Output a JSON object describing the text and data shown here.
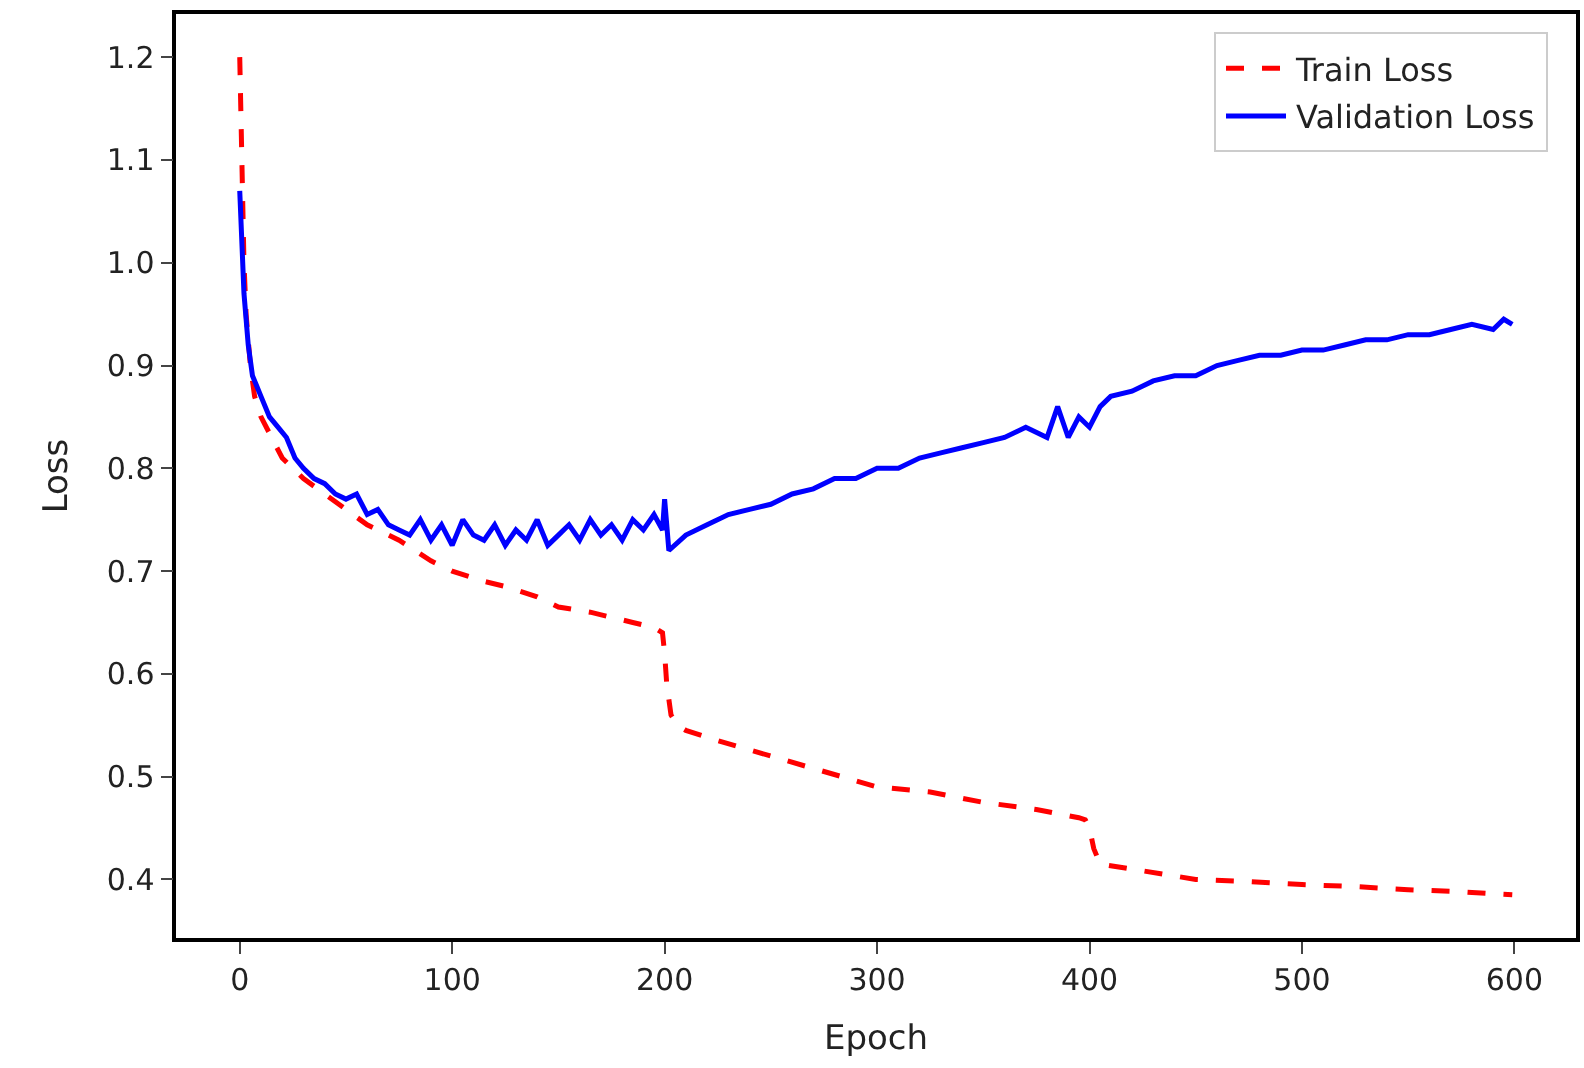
{
  "chart_data": {
    "type": "line",
    "xlabel": "Epoch",
    "ylabel": "Loss",
    "xlim": [
      -30,
      629
    ],
    "ylim": [
      0.343,
      1.242
    ],
    "xticks": [
      0,
      100,
      200,
      300,
      400,
      500,
      600
    ],
    "yticks": [
      0.4,
      0.5,
      0.6,
      0.7,
      0.8,
      0.9,
      {
        "value": 1.0,
        "label": "1.0"
      },
      1.1,
      1.2
    ],
    "legend": "top right",
    "marker": "none",
    "series": [
      {
        "name": "Train Loss",
        "color": "#ff0000",
        "line_style": "dashed",
        "x": [
          0,
          1,
          2,
          3,
          5,
          7,
          10,
          15,
          20,
          30,
          40,
          50,
          60,
          75,
          90,
          100,
          115,
          125,
          140,
          150,
          165,
          175,
          185,
          195,
          199,
          200,
          201,
          203,
          206,
          210,
          225,
          250,
          275,
          300,
          325,
          350,
          375,
          390,
          395,
          398,
          400,
          402,
          405,
          420,
          450,
          475,
          500,
          525,
          550,
          575,
          590,
          599
        ],
        "values": [
          1.2,
          1.1,
          1.0,
          0.95,
          0.9,
          0.87,
          0.85,
          0.83,
          0.81,
          0.79,
          0.775,
          0.76,
          0.745,
          0.73,
          0.71,
          0.7,
          0.69,
          0.685,
          0.675,
          0.665,
          0.66,
          0.655,
          0.65,
          0.645,
          0.64,
          0.62,
          0.59,
          0.56,
          0.55,
          0.545,
          0.535,
          0.52,
          0.505,
          0.49,
          0.485,
          0.475,
          0.468,
          0.462,
          0.46,
          0.458,
          0.45,
          0.43,
          0.415,
          0.41,
          0.4,
          0.398,
          0.395,
          0.393,
          0.39,
          0.388,
          0.386,
          0.385
        ]
      },
      {
        "name": "Validation Loss",
        "color": "#0000ff",
        "line_style": "solid",
        "x": [
          0,
          2,
          4,
          6,
          8,
          10,
          14,
          18,
          22,
          26,
          30,
          35,
          40,
          45,
          50,
          55,
          60,
          65,
          70,
          75,
          80,
          85,
          90,
          95,
          100,
          105,
          110,
          115,
          120,
          125,
          130,
          135,
          140,
          145,
          150,
          155,
          160,
          165,
          170,
          175,
          180,
          185,
          190,
          195,
          199,
          200,
          202,
          210,
          220,
          230,
          240,
          250,
          260,
          270,
          280,
          290,
          300,
          310,
          320,
          330,
          340,
          350,
          360,
          370,
          380,
          385,
          390,
          395,
          400,
          405,
          410,
          420,
          430,
          440,
          450,
          460,
          470,
          480,
          490,
          500,
          510,
          520,
          530,
          540,
          550,
          560,
          570,
          580,
          590,
          595,
          599
        ],
        "values": [
          1.07,
          0.97,
          0.92,
          0.89,
          0.88,
          0.87,
          0.85,
          0.84,
          0.83,
          0.81,
          0.8,
          0.79,
          0.785,
          0.775,
          0.77,
          0.775,
          0.755,
          0.76,
          0.745,
          0.74,
          0.735,
          0.75,
          0.73,
          0.745,
          0.725,
          0.75,
          0.735,
          0.73,
          0.745,
          0.725,
          0.74,
          0.73,
          0.75,
          0.725,
          0.735,
          0.745,
          0.73,
          0.75,
          0.735,
          0.745,
          0.73,
          0.75,
          0.74,
          0.755,
          0.74,
          0.77,
          0.72,
          0.735,
          0.745,
          0.755,
          0.76,
          0.765,
          0.775,
          0.78,
          0.79,
          0.79,
          0.8,
          0.8,
          0.81,
          0.815,
          0.82,
          0.825,
          0.83,
          0.84,
          0.83,
          0.86,
          0.83,
          0.85,
          0.84,
          0.86,
          0.87,
          0.875,
          0.885,
          0.89,
          0.89,
          0.9,
          0.905,
          0.91,
          0.91,
          0.915,
          0.915,
          0.92,
          0.925,
          0.925,
          0.93,
          0.93,
          0.935,
          0.94,
          0.935,
          0.945,
          0.94
        ]
      }
    ]
  }
}
